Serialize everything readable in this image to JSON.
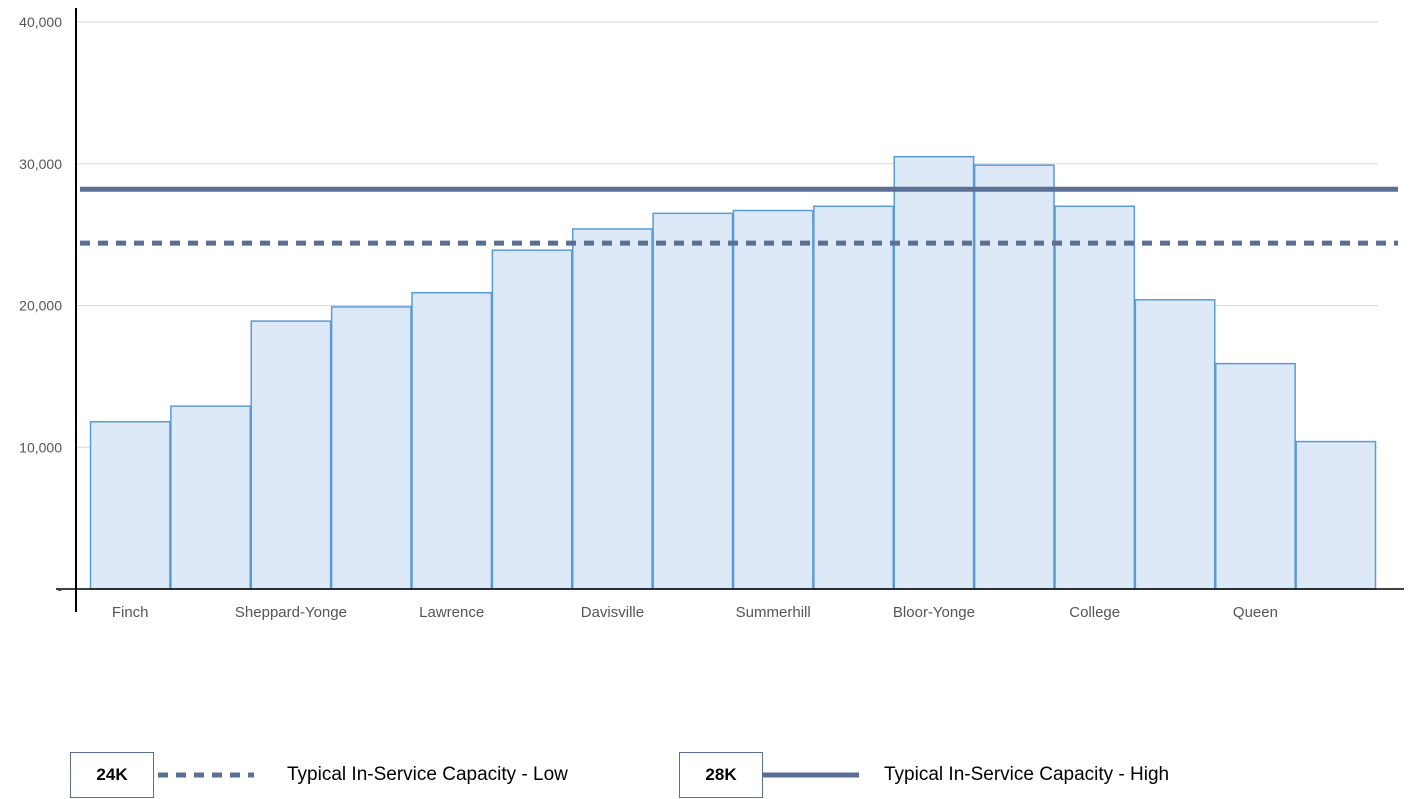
{
  "chart_data": {
    "type": "bar",
    "categories": [
      "Finch",
      "",
      "Sheppard-Yonge",
      "",
      "Lawrence",
      "",
      "Davisville",
      "",
      "Summerhill",
      "",
      "Bloor-Yonge",
      "",
      "College",
      "",
      "Queen",
      ""
    ],
    "values": [
      11800,
      12900,
      18900,
      19900,
      20900,
      23900,
      25400,
      26500,
      26700,
      27000,
      30500,
      29900,
      27000,
      20400,
      15900,
      10400
    ],
    "ylim": [
      0,
      40000
    ],
    "yticks": [
      {
        "value": 0,
        "label": "-"
      },
      {
        "value": 10000,
        "label": "10,000"
      },
      {
        "value": 20000,
        "label": "20,000"
      },
      {
        "value": 30000,
        "label": "30,000"
      },
      {
        "value": 40000,
        "label": "40,000"
      }
    ],
    "grid": true,
    "bar_fill": "#dde9f6",
    "bar_stroke": "#5b9bd5",
    "reference_lines": [
      {
        "name": "Typical In-Service Capacity - Low",
        "value": 24400,
        "style": "dashed",
        "color": "#5b6e96",
        "badge": "24K"
      },
      {
        "name": "Typical In-Service Capacity - High",
        "value": 28200,
        "style": "solid",
        "color": "#5b6e96",
        "badge": "28K"
      }
    ],
    "legend_position": "bottom"
  }
}
